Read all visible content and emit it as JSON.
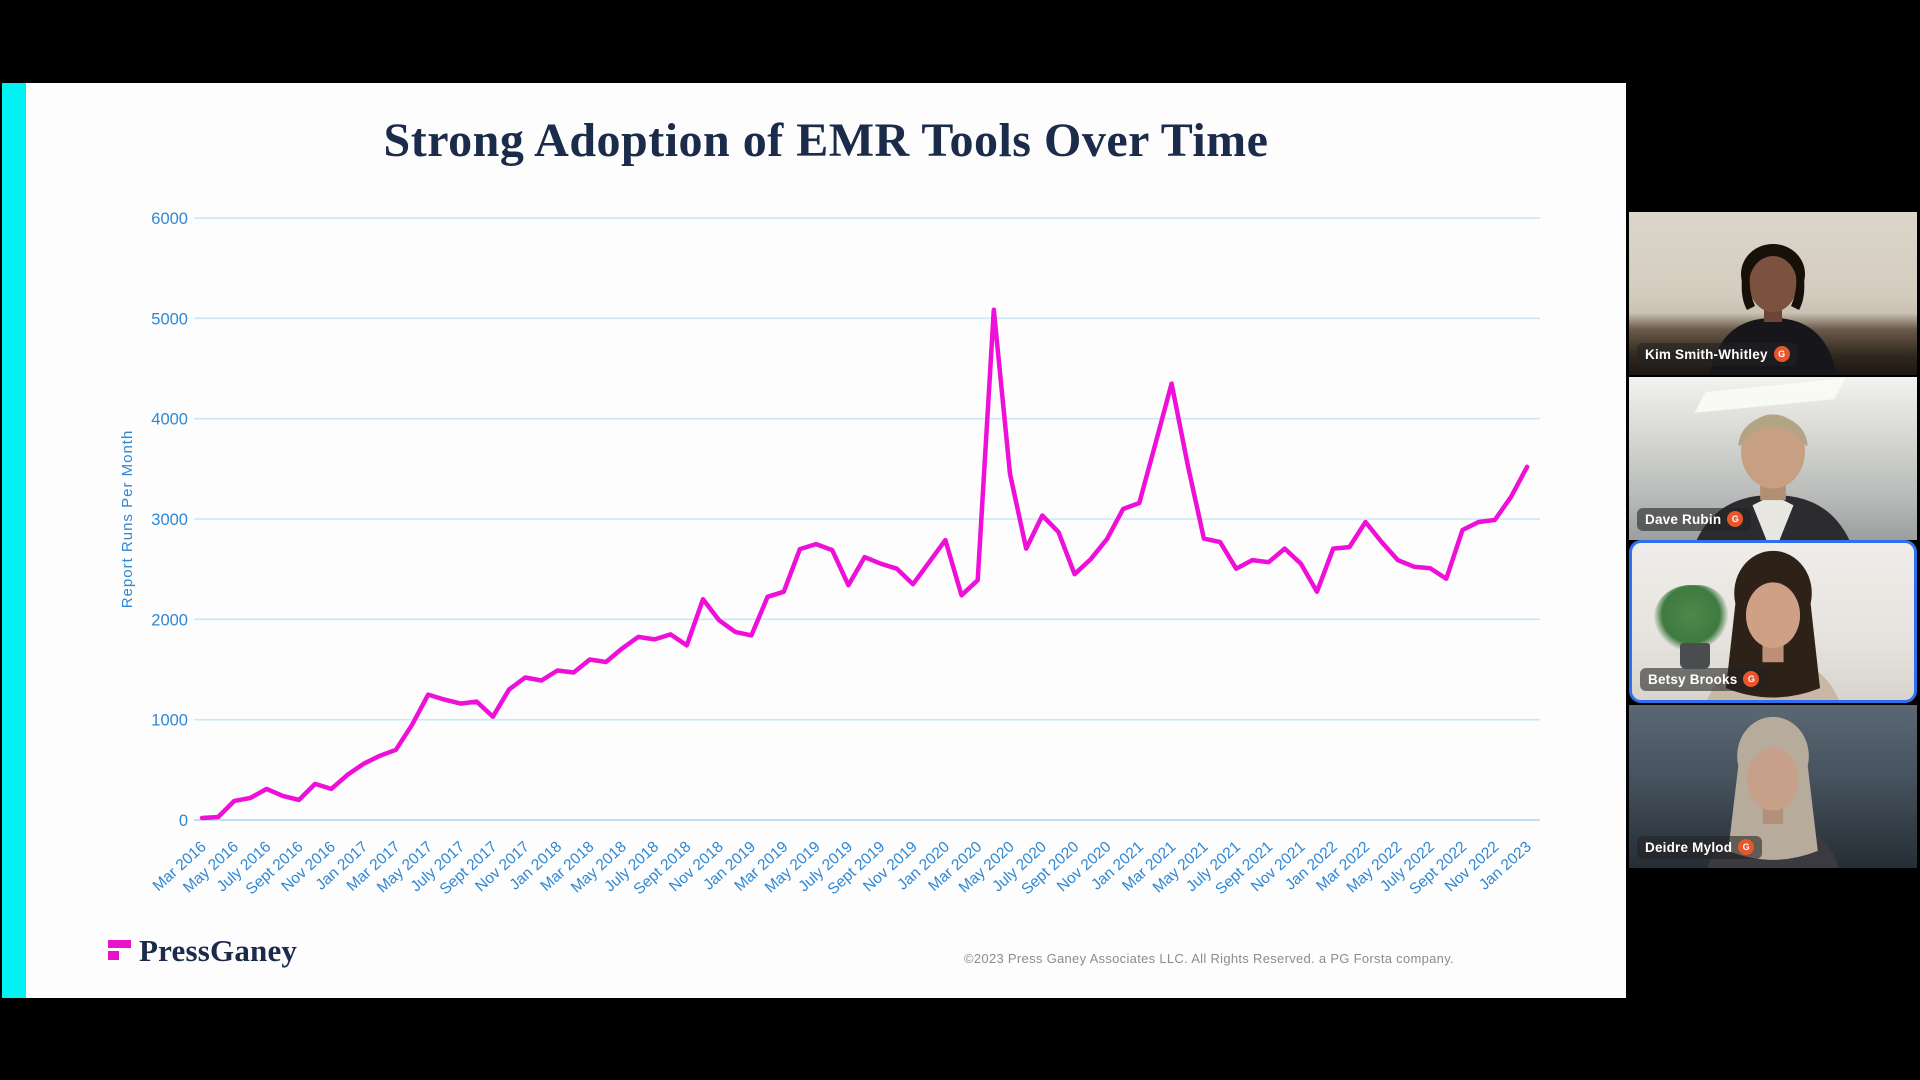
{
  "window": {
    "background": "#000000"
  },
  "slide": {
    "title": "Strong Adoption of EMR Tools Over Time",
    "footer": {
      "logo_text": "PressGaney",
      "copyright": "©2023 Press Ganey Associates LLC. All Rights Reserved. a PG Forsta company."
    }
  },
  "chart_data": {
    "type": "line",
    "title": "Strong Adoption of EMR Tools Over Time",
    "xlabel": "",
    "ylabel": "Report Runs Per Month",
    "ylim": [
      0,
      6000
    ],
    "yticks": [
      0,
      1000,
      2000,
      3000,
      4000,
      5000,
      6000
    ],
    "grid": true,
    "legend": false,
    "x_start": "Mar 2016",
    "x_interval": "monthly",
    "x_tick_labels": [
      "Mar 2016",
      "May 2016",
      "July 2016",
      "Sept 2016",
      "Nov 2016",
      "Jan 2017",
      "Mar 2017",
      "May 2017",
      "July 2017",
      "Sept 2017",
      "Nov 2017",
      "Jan 2018",
      "Mar 2018",
      "May 2018",
      "July 2018",
      "Sept 2018",
      "Nov 2018",
      "Jan 2019",
      "Mar 2019",
      "May 2019",
      "July 2019",
      "Sept 2019",
      "Nov 2019",
      "Jan 2020",
      "Mar 2020",
      "May 2020",
      "July 2020",
      "Sept 2020",
      "Nov 2020",
      "Jan 2021",
      "Mar 2021",
      "May 2021",
      "July 2021",
      "Sept 2021",
      "Nov 2021",
      "Jan 2022",
      "Mar 2022",
      "May 2022",
      "July 2022",
      "Sept 2022",
      "Nov 2022",
      "Jan 2023"
    ],
    "series": [
      {
        "name": "Report Runs Per Month",
        "color": "#ee0fd8",
        "values": [
          20,
          30,
          190,
          220,
          310,
          240,
          200,
          360,
          310,
          450,
          560,
          640,
          700,
          950,
          1250,
          1200,
          1160,
          1180,
          1030,
          1300,
          1420,
          1390,
          1490,
          1470,
          1600,
          1575,
          1710,
          1825,
          1800,
          1850,
          1740,
          2200,
          1990,
          1875,
          1840,
          2225,
          2275,
          2700,
          2750,
          2690,
          2340,
          2620,
          2555,
          2505,
          2350,
          2570,
          2790,
          2240,
          2390,
          5085,
          3450,
          2705,
          3035,
          2870,
          2450,
          2600,
          2800,
          3100,
          3160,
          3750,
          4350,
          3535,
          2805,
          2770,
          2505,
          2590,
          2570,
          2705,
          2555,
          2275,
          2705,
          2720,
          2970,
          2770,
          2590,
          2525,
          2510,
          2405,
          2890,
          2970,
          2990,
          3220,
          3520
        ]
      }
    ]
  },
  "participants": [
    {
      "name": "Kim Smith-Whitley",
      "badge": "G",
      "active": false
    },
    {
      "name": "Dave Rubin",
      "badge": "G",
      "active": false
    },
    {
      "name": "Betsy Brooks",
      "badge": "G",
      "active": true
    },
    {
      "name": "Deidre Mylod",
      "badge": "G",
      "active": false
    }
  ],
  "colors": {
    "accent_cyan": "#00f2f2",
    "line_magenta": "#ee0fd8",
    "logo_magenta": "#e613c9",
    "title_navy": "#1b2b4a",
    "axis_blue": "#2f87d3",
    "grid_blue": "#cbe6f7",
    "axis_line_blue": "#a9d6ef",
    "badge_orange": "#e8562a",
    "active_border_blue": "#2f6fed",
    "copyright_gray": "#8c8c8c"
  }
}
